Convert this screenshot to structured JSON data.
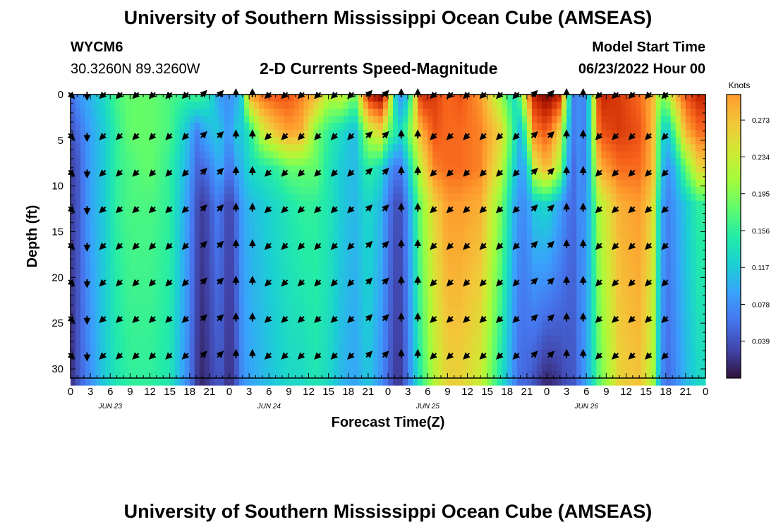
{
  "page": {
    "title_top": "University of Southern Mississippi Ocean Cube (AMSEAS)",
    "title_bottom": "University of Southern Mississippi Ocean Cube (AMSEAS)",
    "station_id": "WYCM6",
    "station_coords": "30.3260N  89.3260W",
    "subtitle": "2-D Currents Speed-Magnitude",
    "model_start_label": "Model Start Time",
    "model_start_value": "06/23/2022 Hour 00"
  },
  "chart_data": {
    "type": "heatmap",
    "title": "2-D Currents Speed-Magnitude",
    "xlabel": "Forecast Time(Z)",
    "ylabel": "Depth (ft)",
    "xlim": [
      0,
      96
    ],
    "ylim": [
      31,
      0
    ],
    "x_tick_labels": [
      "0",
      "3",
      "6",
      "9",
      "12",
      "15",
      "18",
      "21",
      "0",
      "3",
      "6",
      "9",
      "12",
      "15",
      "18",
      "21",
      "0",
      "3",
      "6",
      "9",
      "12",
      "15",
      "18",
      "21",
      "0",
      "3",
      "6",
      "9",
      "12",
      "15",
      "18",
      "21",
      "0"
    ],
    "y_ticks": [
      0,
      5,
      10,
      15,
      20,
      25,
      30
    ],
    "date_labels": [
      "JUN 23",
      "JUN 24",
      "JUN 25",
      "JUN 26"
    ],
    "colorbar": {
      "label": "Knots",
      "range": [
        0.0,
        0.3
      ],
      "ticks": [
        "0.039",
        "0.078",
        "0.117",
        "0.156",
        "0.195",
        "0.234",
        "0.273"
      ]
    },
    "speed_columns_hours": [
      0,
      1,
      3,
      5,
      7,
      9,
      12,
      15,
      18,
      19,
      20,
      21,
      22,
      23,
      24,
      25,
      26,
      27,
      29,
      31,
      33,
      35,
      37,
      39,
      41,
      43,
      45,
      47,
      48,
      49,
      50,
      51,
      53,
      55,
      57,
      59,
      62,
      65,
      67,
      68,
      69,
      70,
      72,
      74,
      75,
      76,
      77,
      78,
      80,
      83,
      86,
      88,
      89,
      90,
      91,
      93,
      95,
      96
    ],
    "speed_depths_ft": [
      0,
      4,
      8,
      12,
      31
    ],
    "speed_knots": [
      [
        0.04,
        0.03,
        0.02,
        0.02,
        0.01
      ],
      [
        0.06,
        0.04,
        0.03,
        0.03,
        0.03
      ],
      [
        0.08,
        0.07,
        0.07,
        0.07,
        0.06
      ],
      [
        0.1,
        0.09,
        0.09,
        0.09,
        0.09
      ],
      [
        0.13,
        0.12,
        0.12,
        0.12,
        0.11
      ],
      [
        0.14,
        0.14,
        0.13,
        0.13,
        0.12
      ],
      [
        0.14,
        0.14,
        0.14,
        0.13,
        0.12
      ],
      [
        0.13,
        0.13,
        0.12,
        0.12,
        0.11
      ],
      [
        0.12,
        0.08,
        0.07,
        0.06,
        0.05
      ],
      [
        0.13,
        0.05,
        0.04,
        0.03,
        0.02
      ],
      [
        0.12,
        0.07,
        0.04,
        0.02,
        0.01
      ],
      [
        0.11,
        0.08,
        0.05,
        0.03,
        0.02
      ],
      [
        0.08,
        0.09,
        0.07,
        0.05,
        0.03
      ],
      [
        0.06,
        0.08,
        0.07,
        0.04,
        0.03
      ],
      [
        0.06,
        0.06,
        0.04,
        0.02,
        0.01
      ],
      [
        0.07,
        0.09,
        0.07,
        0.04,
        0.03
      ],
      [
        0.1,
        0.09,
        0.08,
        0.07,
        0.06
      ],
      [
        0.22,
        0.11,
        0.1,
        0.08,
        0.07
      ],
      [
        0.25,
        0.18,
        0.11,
        0.09,
        0.08
      ],
      [
        0.26,
        0.21,
        0.12,
        0.1,
        0.09
      ],
      [
        0.26,
        0.23,
        0.14,
        0.11,
        0.1
      ],
      [
        0.24,
        0.22,
        0.14,
        0.12,
        0.1
      ],
      [
        0.22,
        0.15,
        0.14,
        0.12,
        0.11
      ],
      [
        0.17,
        0.12,
        0.11,
        0.11,
        0.1
      ],
      [
        0.18,
        0.1,
        0.09,
        0.09,
        0.08
      ],
      [
        0.14,
        0.08,
        0.08,
        0.08,
        0.07
      ],
      [
        0.28,
        0.17,
        0.12,
        0.1,
        0.09
      ],
      [
        0.3,
        0.2,
        0.1,
        0.08,
        0.06
      ],
      [
        0.24,
        0.14,
        0.07,
        0.05,
        0.04
      ],
      [
        0.1,
        0.12,
        0.05,
        0.03,
        0.02
      ],
      [
        0.06,
        0.1,
        0.05,
        0.03,
        0.02
      ],
      [
        0.09,
        0.14,
        0.09,
        0.06,
        0.05
      ],
      [
        0.28,
        0.22,
        0.18,
        0.15,
        0.12
      ],
      [
        0.27,
        0.26,
        0.24,
        0.2,
        0.17
      ],
      [
        0.25,
        0.25,
        0.25,
        0.23,
        0.2
      ],
      [
        0.26,
        0.25,
        0.25,
        0.23,
        0.2
      ],
      [
        0.23,
        0.24,
        0.24,
        0.22,
        0.18
      ],
      [
        0.16,
        0.2,
        0.18,
        0.15,
        0.11
      ],
      [
        0.1,
        0.12,
        0.1,
        0.08,
        0.06
      ],
      [
        0.14,
        0.08,
        0.07,
        0.06,
        0.04
      ],
      [
        0.22,
        0.14,
        0.08,
        0.06,
        0.04
      ],
      [
        0.28,
        0.24,
        0.18,
        0.09,
        0.03
      ],
      [
        0.3,
        0.26,
        0.22,
        0.1,
        0.01
      ],
      [
        0.28,
        0.2,
        0.16,
        0.07,
        0.02
      ],
      [
        0.15,
        0.1,
        0.08,
        0.05,
        0.03
      ],
      [
        0.05,
        0.05,
        0.04,
        0.04,
        0.03
      ],
      [
        0.06,
        0.06,
        0.06,
        0.06,
        0.05
      ],
      [
        0.05,
        0.05,
        0.05,
        0.06,
        0.07
      ],
      [
        0.28,
        0.26,
        0.22,
        0.17,
        0.14
      ],
      [
        0.27,
        0.27,
        0.25,
        0.22,
        0.2
      ],
      [
        0.25,
        0.26,
        0.25,
        0.23,
        0.21
      ],
      [
        0.22,
        0.22,
        0.22,
        0.2,
        0.17
      ],
      [
        0.16,
        0.13,
        0.12,
        0.1,
        0.08
      ],
      [
        0.15,
        0.08,
        0.06,
        0.05,
        0.04
      ],
      [
        0.2,
        0.12,
        0.07,
        0.06,
        0.05
      ],
      [
        0.26,
        0.22,
        0.14,
        0.09,
        0.08
      ],
      [
        0.28,
        0.25,
        0.2,
        0.12,
        0.1
      ],
      [
        0.28,
        0.25,
        0.2,
        0.12,
        0.1
      ]
    ],
    "arrow_depths_ft": [
      0,
      4.5,
      8.5,
      12.5,
      16.5,
      20.5,
      24.5,
      28.5
    ],
    "arrow_first_hour": 0,
    "arrow_step_hours": 2.5,
    "arrow_count": 37,
    "arrow_direction_pattern": [
      "SE",
      "S",
      "SW",
      "SW",
      "SW",
      "SW",
      "SW",
      "SW",
      "NE",
      "NE",
      "N",
      "N",
      "SW",
      "SW",
      "SW",
      "SW",
      "SW",
      "SW",
      "NE",
      "NE",
      "N",
      "N",
      "SW",
      "SW",
      "SW",
      "SW",
      "SW",
      "SW",
      "NE",
      "NE",
      "N",
      "N",
      "SW",
      "SW",
      "SW",
      "SW",
      "SW"
    ],
    "legend_position": "right"
  }
}
